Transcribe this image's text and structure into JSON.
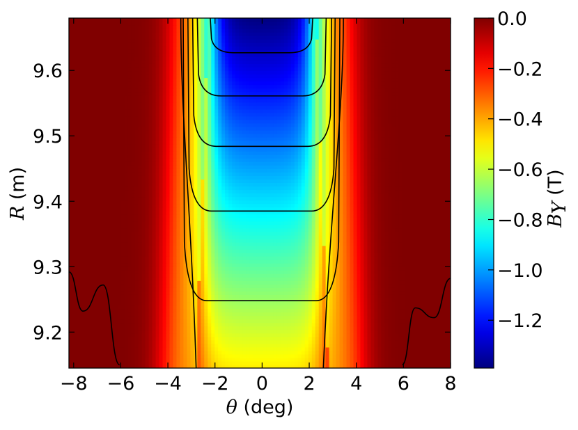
{
  "chart_data": {
    "type": "heatmap",
    "title": "",
    "xlabel": "θ (deg)",
    "ylabel": "R (m)",
    "xlabel_parts": {
      "symbol": "θ",
      "unit": " (deg)"
    },
    "ylabel_parts": {
      "symbol": "R",
      "unit": " (m)"
    },
    "colorbar_label_parts": {
      "symbol": "B",
      "subscript": "Y",
      "unit": " (T)"
    },
    "x_range": [
      -8.2,
      8.0
    ],
    "y_range": [
      9.145,
      9.68
    ],
    "x_ticks": [
      -8,
      -6,
      -4,
      -2,
      0,
      2,
      4,
      6,
      8
    ],
    "x_tick_labels": [
      "−8",
      "−6",
      "−4",
      "−2",
      "0",
      "2",
      "4",
      "6",
      "8"
    ],
    "y_ticks": [
      9.2,
      9.3,
      9.4,
      9.5,
      9.6
    ],
    "y_tick_labels": [
      "9.2",
      "9.3",
      "9.4",
      "9.5",
      "9.6"
    ],
    "colormap": "jet",
    "color_range": [
      -1.39,
      0.0
    ],
    "colorbar_ticks": [
      0.0,
      -0.2,
      -0.4,
      -0.6,
      -0.8,
      -1.0,
      -1.2
    ],
    "colorbar_tick_labels": [
      "0.0",
      "−0.2",
      "−0.4",
      "−0.6",
      "−0.8",
      "−1.0",
      "−1.2"
    ],
    "field_model": {
      "well_center_deg": 0.0,
      "half_width_at_bottom_deg": 2.8,
      "half_width_at_top_deg": 2.3,
      "edge_softness_deg": 0.32,
      "center_value_at_R_min": -0.5,
      "center_value_at_R_max": -1.39
    },
    "contour_levels": [
      -0.6,
      -0.8,
      -1.0,
      -1.2
    ],
    "contour_flat_R": [
      9.248,
      9.385,
      9.484,
      9.561,
      9.627
    ],
    "outer_contour_edges": [
      {
        "theta_at_R_min": -2.8,
        "theta_at_R_max": -3.45
      },
      {
        "theta_at_R_min": 2.6,
        "theta_at_R_max": 3.45
      }
    ],
    "side_contours": [
      {
        "side": "left",
        "points": [
          [
            -8.2,
            9.292
          ],
          [
            -7.6,
            9.232
          ],
          [
            -6.75,
            9.272
          ],
          [
            -6.05,
            9.15
          ]
        ]
      },
      {
        "side": "right",
        "points": [
          [
            5.95,
            9.15
          ],
          [
            6.5,
            9.237
          ],
          [
            7.3,
            9.222
          ],
          [
            8.0,
            9.282
          ]
        ]
      }
    ]
  }
}
